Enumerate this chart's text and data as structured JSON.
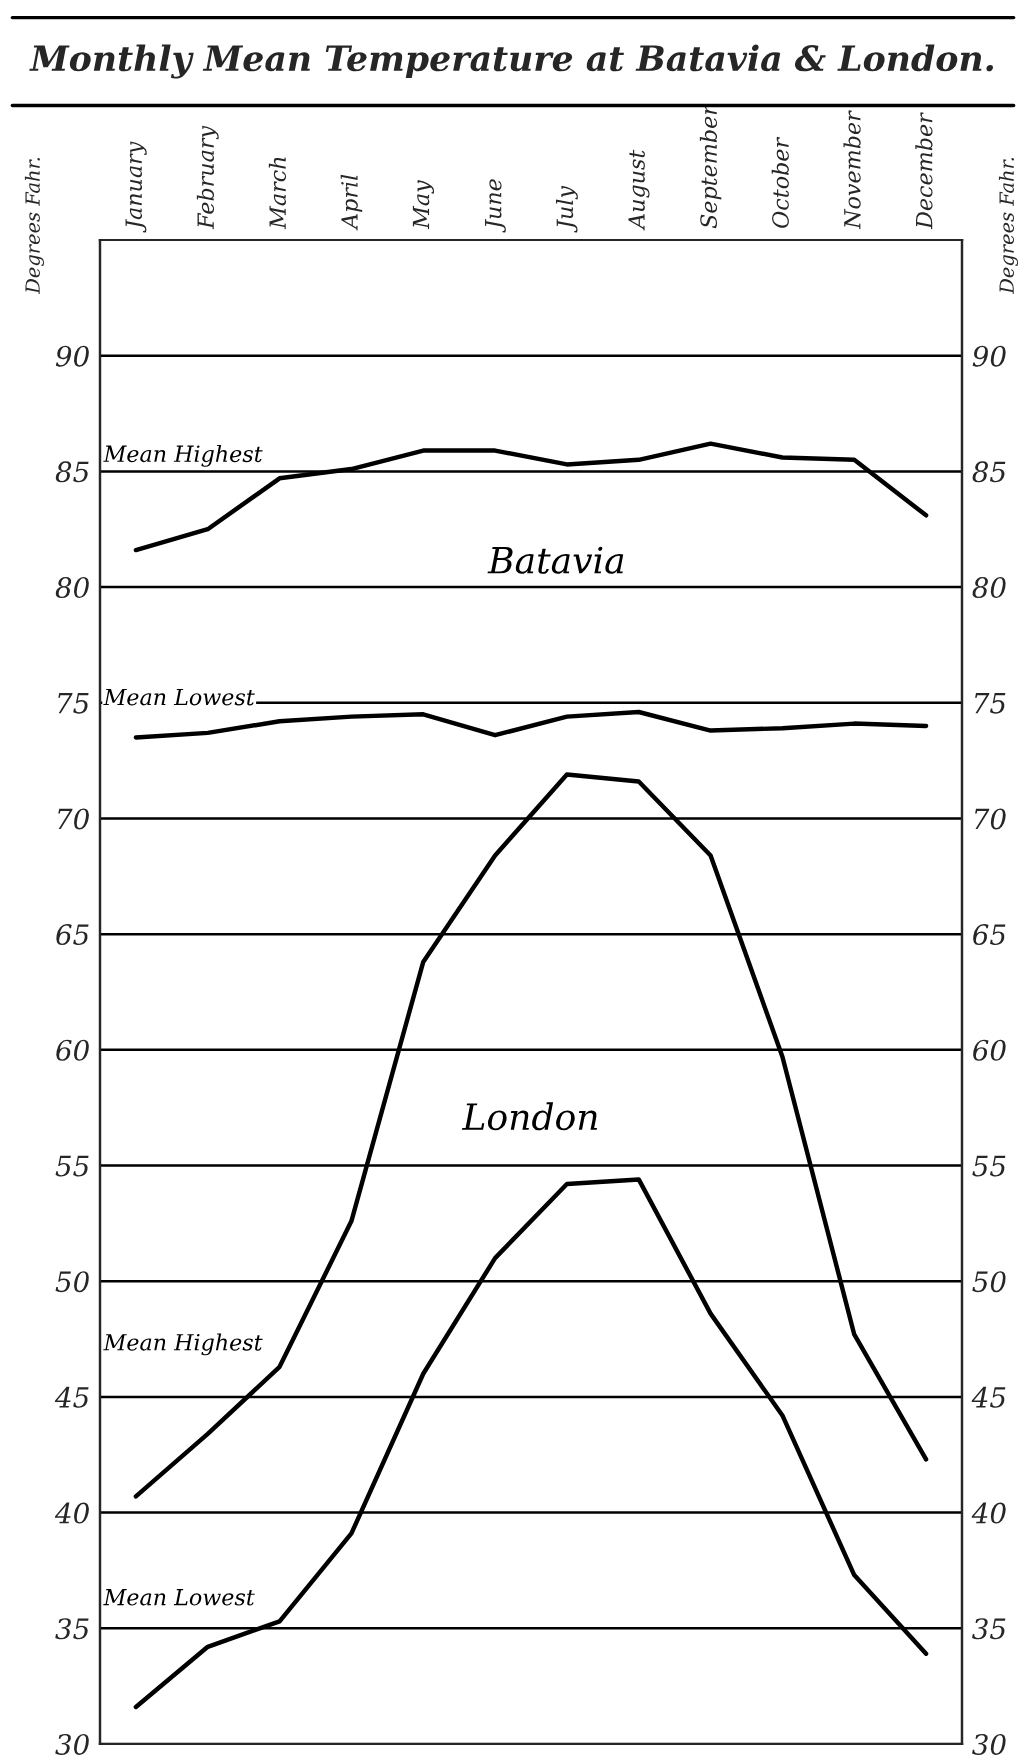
{
  "chart_data": {
    "type": "line",
    "title": "Monthly Mean Temperature at Batavia & London.",
    "ylabel": "Degrees Fahr.",
    "y2label": "Degrees Fahr.",
    "categories": [
      "January",
      "February",
      "March",
      "April",
      "May",
      "June",
      "July",
      "August",
      "September",
      "October",
      "November",
      "December"
    ],
    "series": [
      {
        "name": "Mean Highest",
        "color": "#000000",
        "values": [
          81.6,
          82.5,
          84.7,
          85.1,
          85.9,
          85.9,
          85.3,
          85.5,
          86.2,
          85.6,
          85.5,
          83.1
        ]
      },
      {
        "name": "Mean Lowest",
        "color": "#000000",
        "values": [
          73.5,
          73.7,
          74.2,
          74.4,
          74.5,
          73.6,
          74.4,
          74.6,
          73.8,
          73.9,
          74.1,
          74.0
        ]
      },
      {
        "name": "Mean Highest",
        "color": "#000000",
        "values": [
          40.7,
          43.4,
          46.3,
          52.6,
          63.8,
          68.4,
          71.9,
          71.6,
          68.4,
          59.7,
          47.7,
          42.3
        ]
      },
      {
        "name": "Mean Lowest",
        "color": "#000000",
        "values": [
          31.6,
          34.2,
          35.3,
          39.1,
          46.0,
          51.0,
          54.2,
          54.4,
          48.6,
          44.2,
          37.3,
          33.9
        ]
      }
    ],
    "annotations": [
      "Batavia",
      "London"
    ],
    "ylim": [
      30,
      95
    ],
    "yticks": [
      30,
      35,
      40,
      45,
      50,
      55,
      60,
      65,
      70,
      75,
      80,
      85,
      90
    ],
    "y2lim": [
      30,
      95
    ],
    "y2ticks": [
      30,
      35,
      40,
      45,
      50,
      55,
      60,
      65,
      70,
      75,
      80,
      85,
      90
    ],
    "grid": true,
    "legend": false,
    "marker": "none",
    "line_style": "solid"
  }
}
